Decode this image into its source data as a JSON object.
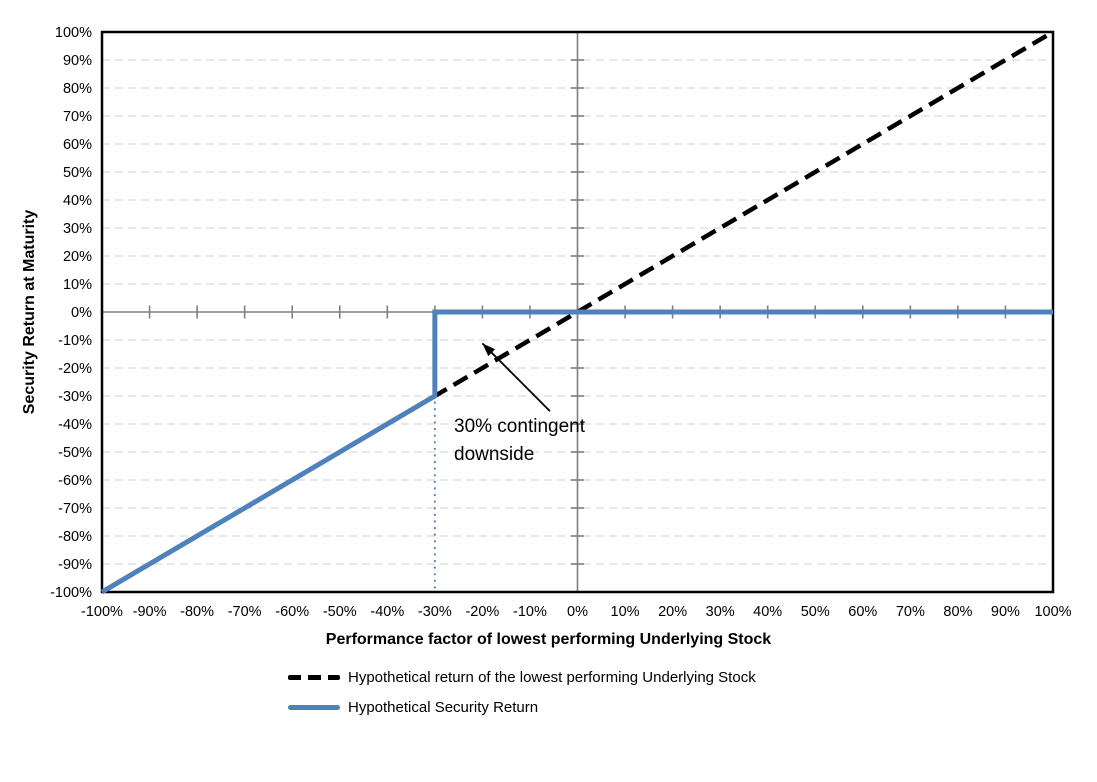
{
  "chart_data": {
    "type": "line",
    "title": "",
    "xlabel": "Performance factor of lowest performing Underlying Stock",
    "ylabel": "Security Return at Maturity",
    "xlim": [
      -100,
      100
    ],
    "ylim": [
      -100,
      100
    ],
    "x_tick_step": 10,
    "y_tick_step": 10,
    "x_tick_labels": [
      "-100%",
      "-90%",
      "-80%",
      "-70%",
      "-60%",
      "-50%",
      "-40%",
      "-30%",
      "-20%",
      "-10%",
      "0%",
      "10%",
      "20%",
      "30%",
      "40%",
      "50%",
      "60%",
      "70%",
      "80%",
      "90%",
      "100%"
    ],
    "y_tick_labels": [
      "-100%",
      "-90%",
      "-80%",
      "-70%",
      "-60%",
      "-50%",
      "-40%",
      "-30%",
      "-20%",
      "-10%",
      "0%",
      "10%",
      "20%",
      "30%",
      "40%",
      "50%",
      "60%",
      "70%",
      "80%",
      "90%",
      "100%"
    ],
    "grid": "horizontal-dashed",
    "legend_position": "bottom",
    "series": [
      {
        "name": "Hypothetical return of the lowest performing Underlying Stock",
        "style": "dashed",
        "color": "#000000",
        "points": [
          [
            -100,
            -100
          ],
          [
            100,
            100
          ]
        ]
      },
      {
        "name": "Hypothetical Security Return",
        "style": "solid",
        "color": "#4F81BD",
        "points": [
          [
            -100,
            -100
          ],
          [
            -30,
            -30
          ],
          [
            -30,
            0
          ],
          [
            100,
            0
          ]
        ]
      }
    ],
    "guides": [
      {
        "name": "barrier-guide-dotted",
        "style": "dotted",
        "color": "#5E87B8",
        "points": [
          [
            -30,
            -30
          ],
          [
            -30,
            -100
          ]
        ]
      }
    ],
    "annotation": {
      "text": "30% contingent downside",
      "arrow_from": [
        -5.8,
        -35.4
      ],
      "arrow_to": [
        -20.0,
        -11.2
      ]
    },
    "colors": {
      "grid": "#D9D9D9",
      "axis": "#7F7F7F",
      "border": "#000000",
      "text": "#000000",
      "background": "#FFFFFF"
    }
  }
}
